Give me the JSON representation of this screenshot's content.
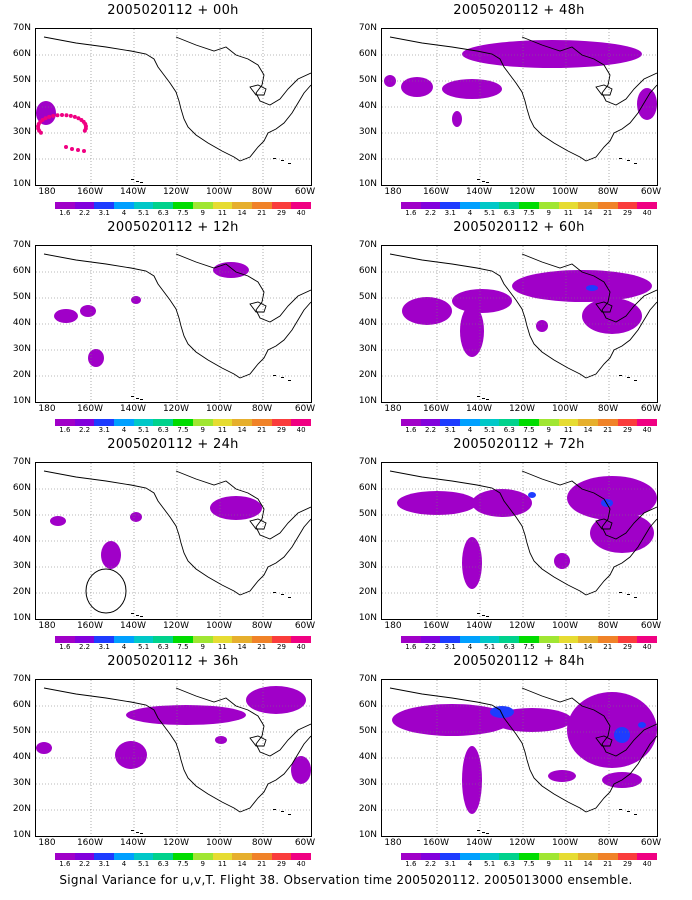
{
  "map": {
    "lat_labels": [
      "70N",
      "60N",
      "50N",
      "40N",
      "30N",
      "20N",
      "10N"
    ],
    "lon_labels": [
      "180",
      "160W",
      "140W",
      "120W",
      "100W",
      "80W",
      "60W"
    ],
    "grid": "dotted"
  },
  "colorbar": {
    "labels": [
      "1.6",
      "2.2",
      "3.1",
      "4",
      "5.1",
      "6.3",
      "7.5",
      "9",
      "11",
      "14",
      "21",
      "29",
      "40"
    ],
    "colors": [
      "#a000c8",
      "#8200dc",
      "#1e3cff",
      "#00a0ff",
      "#00c8c8",
      "#00d28c",
      "#00dc00",
      "#a0e632",
      "#e6dc32",
      "#e6af2d",
      "#f08228",
      "#fa3c3c",
      "#f00082"
    ]
  },
  "panels": [
    {
      "id": "p00",
      "title": "2005020112 + 00h"
    },
    {
      "id": "p48",
      "title": "2005020112 + 48h"
    },
    {
      "id": "p12",
      "title": "2005020112 + 12h"
    },
    {
      "id": "p60",
      "title": "2005020112 + 60h"
    },
    {
      "id": "p24",
      "title": "2005020112 + 24h"
    },
    {
      "id": "p72",
      "title": "2005020112 + 72h"
    },
    {
      "id": "p36",
      "title": "2005020112 + 36h"
    },
    {
      "id": "p84",
      "title": "2005020112 + 84h"
    }
  ],
  "caption": "Signal Variance for u,v,T. Flight 38. Observation time 2005020112. 2005013000 ensemble."
}
